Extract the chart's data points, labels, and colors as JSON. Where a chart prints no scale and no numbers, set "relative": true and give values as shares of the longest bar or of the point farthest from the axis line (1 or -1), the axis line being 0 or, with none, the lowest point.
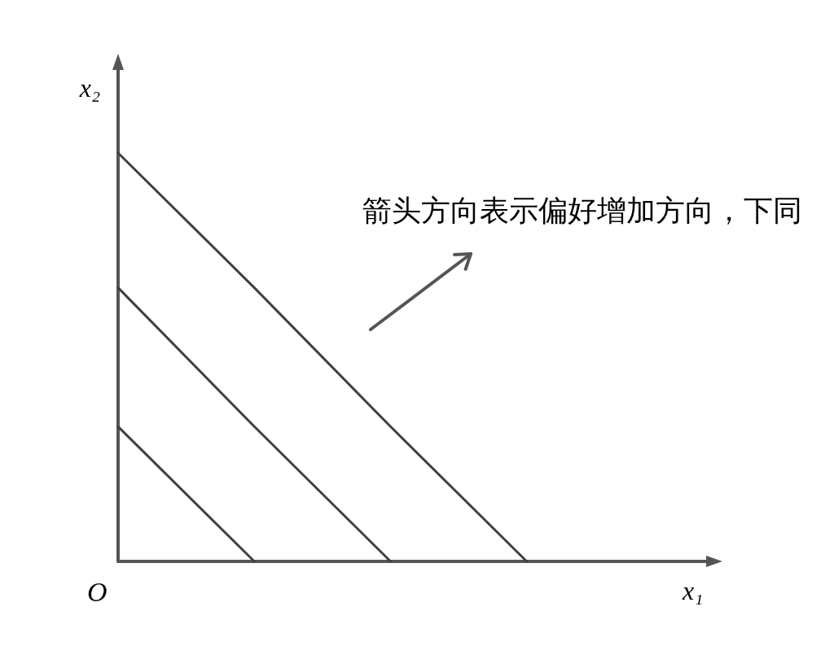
{
  "chart_data": {
    "type": "line",
    "xlabel": "x₁",
    "ylabel": "x₂",
    "annotations": [
      "箭头方向表示偏好增加方向，下同",
      "O"
    ],
    "categories": [
      null,
      null,
      null,
      null
    ],
    "relative": true,
    "marker": "none",
    "series": [
      {
        "color": "#404040",
        "values": [
          0.33,
          0,
          null,
          null
        ]
      },
      {
        "color": "#404040",
        "values": [
          0.67,
          0.33,
          0,
          null
        ]
      },
      {
        "color": "#404040",
        "values": [
          1,
          0.67,
          0.33,
          0
        ]
      }
    ]
  }
}
